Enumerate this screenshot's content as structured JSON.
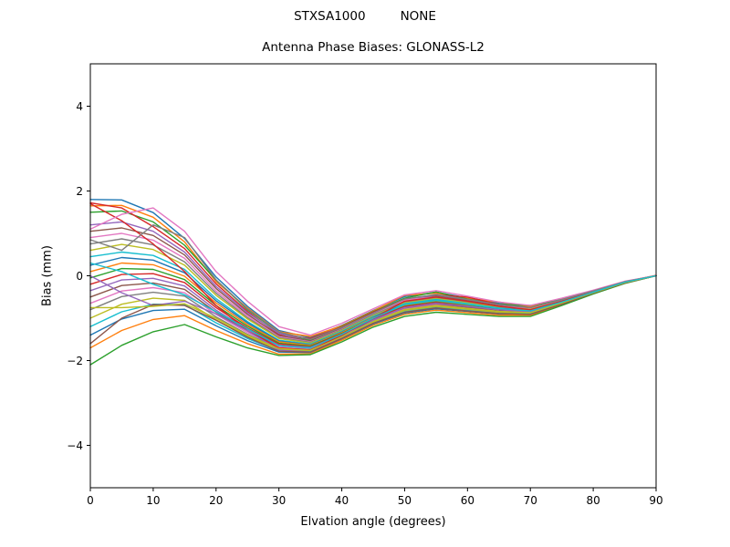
{
  "chart_data": {
    "type": "line",
    "suptitle_left": "STXSA1000",
    "suptitle_right": "NONE",
    "title": "Antenna Phase Biases: GLONASS-L2",
    "xlabel": "Elvation angle (degrees)",
    "ylabel": "Bias (mm)",
    "xlim": [
      0,
      90
    ],
    "ylim": [
      -5,
      5
    ],
    "xticks": [
      0,
      10,
      20,
      30,
      40,
      50,
      60,
      70,
      80,
      90
    ],
    "yticks": [
      -4,
      -2,
      0,
      2,
      4
    ],
    "grid": false,
    "legend": "none",
    "x": [
      0,
      5,
      10,
      15,
      20,
      25,
      30,
      35,
      40,
      45,
      50,
      55,
      60,
      65,
      70,
      75,
      80,
      85,
      90
    ],
    "series": [
      {
        "color": "#1f77b4",
        "values": [
          1.8,
          1.79,
          1.49,
          0.88,
          -0.03,
          -0.72,
          -1.29,
          -1.46,
          -1.17,
          -0.82,
          -0.49,
          -0.39,
          -0.52,
          -0.65,
          -0.72,
          -0.55,
          -0.35,
          -0.14,
          0.0
        ]
      },
      {
        "color": "#ff7f0e",
        "values": [
          1.65,
          1.66,
          1.38,
          0.8,
          -0.14,
          -0.76,
          -1.32,
          -1.43,
          -1.18,
          -0.83,
          -0.46,
          -0.41,
          -0.53,
          -0.62,
          -0.73,
          -0.55,
          -0.36,
          -0.14,
          0.0
        ]
      },
      {
        "color": "#2ca02c",
        "values": [
          1.5,
          1.53,
          1.27,
          0.72,
          -0.1,
          -0.8,
          -1.34,
          -1.52,
          -1.2,
          -0.85,
          -0.53,
          -0.38,
          -0.55,
          -0.67,
          -0.7,
          -0.56,
          -0.36,
          -0.14,
          0.0
        ]
      },
      {
        "color": "#d62728",
        "values": [
          1.72,
          1.6,
          1.16,
          0.64,
          -0.19,
          -0.84,
          -1.39,
          -1.48,
          -1.21,
          -0.86,
          -0.55,
          -0.45,
          -0.5,
          -0.68,
          -0.75,
          -0.57,
          -0.36,
          -0.14,
          0.01
        ]
      },
      {
        "color": "#9467bd",
        "values": [
          1.2,
          1.27,
          1.05,
          0.56,
          -0.25,
          -0.87,
          -1.36,
          -1.55,
          -1.23,
          -0.88,
          -0.57,
          -0.47,
          -0.58,
          -0.69,
          -0.78,
          -0.57,
          -0.37,
          -0.14,
          0.0
        ]
      },
      {
        "color": "#8c564b",
        "values": [
          1.05,
          1.13,
          0.95,
          0.49,
          -0.3,
          -0.91,
          -1.41,
          -1.54,
          -1.24,
          -0.89,
          -0.61,
          -0.48,
          -0.59,
          -0.71,
          -0.77,
          -0.58,
          -0.37,
          -0.15,
          0.0
        ]
      },
      {
        "color": "#e377c2",
        "values": [
          0.9,
          1.0,
          0.84,
          0.41,
          -0.36,
          -0.95,
          -1.44,
          -1.56,
          -1.26,
          -0.91,
          -0.57,
          -0.5,
          -0.61,
          -0.72,
          -0.78,
          -0.58,
          -0.37,
          -0.15,
          0.0
        ]
      },
      {
        "color": "#7f7f7f",
        "values": [
          0.75,
          0.87,
          0.73,
          0.33,
          -0.41,
          -0.99,
          -1.46,
          -1.57,
          -1.27,
          -0.92,
          -0.62,
          -0.52,
          -0.62,
          -0.73,
          -0.8,
          -0.59,
          -0.37,
          -0.15,
          0.0
        ]
      },
      {
        "color": "#bcbd22",
        "values": [
          0.6,
          0.74,
          0.62,
          0.25,
          -0.46,
          -1.02,
          -1.48,
          -1.59,
          -1.29,
          -0.94,
          -0.64,
          -0.54,
          -0.64,
          -0.74,
          -0.79,
          -0.6,
          -0.38,
          -0.15,
          0.0
        ]
      },
      {
        "color": "#17becf",
        "values": [
          0.45,
          0.56,
          0.48,
          0.15,
          -0.54,
          -1.08,
          -1.52,
          -1.61,
          -1.31,
          -0.96,
          -0.66,
          -0.56,
          -0.66,
          -0.76,
          -0.81,
          -0.6,
          -0.38,
          -0.15,
          0.0
        ]
      },
      {
        "color": "#1f77b4",
        "values": [
          0.25,
          0.43,
          0.37,
          0.07,
          -0.59,
          -1.11,
          -1.54,
          -1.63,
          -1.33,
          -0.98,
          -0.68,
          -0.58,
          -0.68,
          -0.77,
          -0.82,
          -0.61,
          -0.39,
          -0.15,
          0.0
        ]
      },
      {
        "color": "#ff7f0e",
        "values": [
          0.1,
          0.3,
          0.26,
          -0.01,
          -0.64,
          -1.15,
          -1.56,
          -1.64,
          -1.34,
          -0.99,
          -0.7,
          -0.6,
          -0.69,
          -0.78,
          -0.82,
          -0.62,
          -0.39,
          -0.15,
          0.0
        ]
      },
      {
        "color": "#2ca02c",
        "values": [
          -0.05,
          0.17,
          0.15,
          -0.09,
          -0.7,
          -1.19,
          -1.59,
          -1.66,
          -1.36,
          -1.01,
          -0.72,
          -0.62,
          -0.71,
          -0.79,
          -0.83,
          -0.62,
          -0.39,
          -0.16,
          0.0
        ]
      },
      {
        "color": "#d62728",
        "values": [
          -0.2,
          0.03,
          0.05,
          -0.16,
          -0.75,
          -1.23,
          -1.61,
          -1.68,
          -1.37,
          -1.02,
          -0.73,
          -0.63,
          -0.72,
          -0.81,
          -0.84,
          -0.63,
          -0.4,
          -0.16,
          0.0
        ]
      },
      {
        "color": "#9467bd",
        "values": [
          -0.35,
          -0.1,
          -0.06,
          -0.24,
          -0.81,
          -1.26,
          -1.64,
          -1.69,
          -1.39,
          -1.04,
          -0.75,
          -0.65,
          -0.74,
          -0.82,
          -0.85,
          -0.63,
          -0.4,
          -0.16,
          0.0
        ]
      },
      {
        "color": "#8c564b",
        "values": [
          -0.5,
          -0.23,
          -0.17,
          -0.32,
          -0.86,
          -1.3,
          -1.66,
          -1.71,
          -1.4,
          -1.05,
          -0.77,
          -0.67,
          -0.75,
          -0.83,
          -0.86,
          -0.64,
          -0.4,
          -0.16,
          0.0
        ]
      },
      {
        "color": "#e377c2",
        "values": [
          -0.65,
          -0.36,
          -0.28,
          -0.4,
          -0.91,
          -1.34,
          -1.68,
          -1.73,
          -1.42,
          -1.07,
          -0.79,
          -0.69,
          -0.77,
          -0.84,
          -0.87,
          -0.65,
          -0.4,
          -0.16,
          0.0
        ]
      },
      {
        "color": "#7f7f7f",
        "values": [
          -0.8,
          -0.49,
          -0.39,
          -0.48,
          -0.97,
          -1.38,
          -1.71,
          -1.74,
          -1.43,
          -1.08,
          -0.81,
          -0.71,
          -0.78,
          -0.85,
          -0.88,
          -0.65,
          -0.41,
          -0.16,
          0.0
        ]
      },
      {
        "color": "#bcbd22",
        "values": [
          -1.0,
          -0.67,
          -0.53,
          -0.58,
          -1.04,
          -1.43,
          -1.74,
          -1.77,
          -1.45,
          -1.1,
          -0.83,
          -0.73,
          -0.8,
          -0.87,
          -0.89,
          -0.66,
          -0.41,
          -0.17,
          0.0
        ]
      },
      {
        "color": "#17becf",
        "values": [
          -1.2,
          -0.85,
          -0.67,
          -0.68,
          -1.11,
          -1.48,
          -1.77,
          -1.79,
          -1.47,
          -1.12,
          -0.85,
          -0.75,
          -0.82,
          -0.89,
          -0.9,
          -0.67,
          -0.41,
          -0.17,
          0.0
        ]
      },
      {
        "color": "#1f77b4",
        "values": [
          -1.4,
          -1.02,
          -0.82,
          -0.79,
          -1.18,
          -1.53,
          -1.8,
          -1.81,
          -1.49,
          -1.14,
          -0.88,
          -0.78,
          -0.84,
          -0.9,
          -0.91,
          -0.68,
          -0.42,
          -0.17,
          0.0
        ]
      },
      {
        "color": "#ff7f0e",
        "values": [
          -1.7,
          -1.29,
          -1.03,
          -0.94,
          -1.29,
          -1.6,
          -1.85,
          -1.84,
          -1.52,
          -1.17,
          -0.91,
          -0.81,
          -0.87,
          -0.93,
          -0.93,
          -0.69,
          -0.42,
          -0.17,
          0.0
        ]
      },
      {
        "color": "#2ca02c",
        "values": [
          -2.1,
          -1.64,
          -1.32,
          -1.15,
          -1.44,
          -1.7,
          -1.88,
          -1.86,
          -1.56,
          -1.21,
          -0.96,
          -0.86,
          -0.91,
          -0.96,
          -0.96,
          -0.7,
          -0.43,
          -0.18,
          0.0
        ]
      },
      {
        "color": "#d62728",
        "values": [
          1.7,
          1.3,
          0.75,
          0.1,
          -0.7,
          -1.3,
          -1.7,
          -1.75,
          -1.4,
          -1.0,
          -0.6,
          -0.5,
          -0.6,
          -0.72,
          -0.8,
          -0.6,
          -0.38,
          -0.15,
          0.0
        ]
      },
      {
        "color": "#9467bd",
        "values": [
          0.0,
          -0.4,
          -0.7,
          -0.6,
          -0.9,
          -1.3,
          -1.75,
          -1.8,
          -1.45,
          -1.05,
          -0.75,
          -0.65,
          -0.72,
          -0.8,
          -0.85,
          -0.64,
          -0.4,
          -0.16,
          0.0
        ]
      },
      {
        "color": "#8c564b",
        "values": [
          -1.6,
          -1.0,
          -0.68,
          -0.7,
          -1.05,
          -1.45,
          -1.78,
          -1.8,
          -1.48,
          -1.12,
          -0.86,
          -0.76,
          -0.83,
          -0.89,
          -0.91,
          -0.67,
          -0.41,
          -0.17,
          0.0
        ]
      },
      {
        "color": "#e377c2",
        "values": [
          1.1,
          1.45,
          1.6,
          1.05,
          0.1,
          -0.6,
          -1.2,
          -1.4,
          -1.12,
          -0.78,
          -0.45,
          -0.35,
          -0.48,
          -0.62,
          -0.7,
          -0.53,
          -0.34,
          -0.13,
          0.0
        ]
      },
      {
        "color": "#7f7f7f",
        "values": [
          0.85,
          0.6,
          1.2,
          0.9,
          -0.1,
          -0.78,
          -1.33,
          -1.5,
          -1.22,
          -0.88,
          -0.55,
          -0.44,
          -0.56,
          -0.68,
          -0.75,
          -0.56,
          -0.36,
          -0.14,
          0.0
        ]
      },
      {
        "color": "#bcbd22",
        "values": [
          -0.75,
          -0.75,
          -0.72,
          -0.66,
          -1.0,
          -1.4,
          -1.72,
          -1.76,
          -1.44,
          -1.08,
          -0.8,
          -0.7,
          -0.77,
          -0.84,
          -0.87,
          -0.64,
          -0.4,
          -0.16,
          0.0
        ]
      },
      {
        "color": "#17becf",
        "values": [
          0.3,
          0.1,
          -0.2,
          -0.45,
          -0.85,
          -1.25,
          -1.65,
          -1.7,
          -1.38,
          -1.0,
          -0.68,
          -0.58,
          -0.67,
          -0.77,
          -0.83,
          -0.62,
          -0.39,
          -0.15,
          0.0
        ]
      }
    ]
  }
}
